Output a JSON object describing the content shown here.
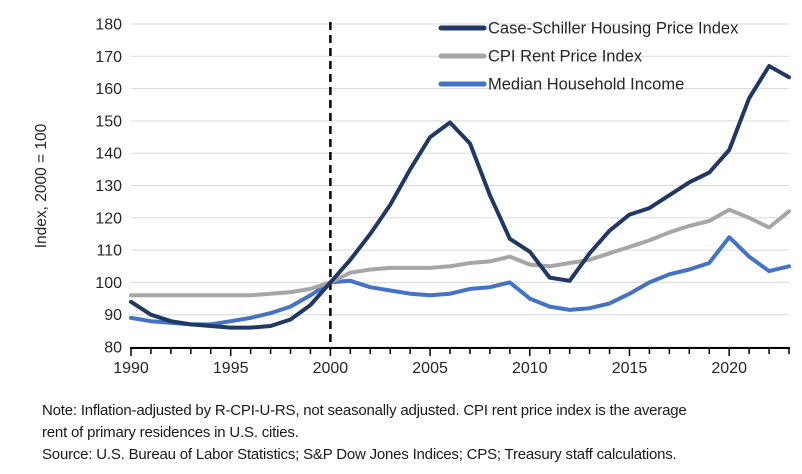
{
  "chart_data": {
    "type": "line",
    "title": "",
    "xlabel": "",
    "ylabel": "Index, 2000 = 100",
    "ylim": [
      80,
      180
    ],
    "ytick_step": 10,
    "xlim": [
      1990,
      2023
    ],
    "xticks": [
      1990,
      1995,
      2000,
      2005,
      2010,
      2015,
      2020
    ],
    "grid": "horizontal",
    "gridline_color": "#d9d9d9",
    "axis_color": "#000000",
    "reference_line": {
      "x": 2000,
      "style": "dashed",
      "color": "#000000"
    },
    "legend_position": "top-right-inside",
    "x": [
      1990,
      1991,
      1992,
      1993,
      1994,
      1995,
      1996,
      1997,
      1998,
      1999,
      2000,
      2001,
      2002,
      2003,
      2004,
      2005,
      2006,
      2007,
      2008,
      2009,
      2010,
      2011,
      2012,
      2013,
      2014,
      2015,
      2016,
      2017,
      2018,
      2019,
      2020,
      2021,
      2022,
      2023
    ],
    "series": [
      {
        "name": "Case-Schiller Housing Price Index",
        "color": "#1f3864",
        "values": [
          94,
          90,
          88,
          87,
          86.5,
          86,
          86,
          86.5,
          88.5,
          93,
          100,
          107,
          115,
          124,
          135,
          145,
          149.5,
          143,
          127,
          113.5,
          109.5,
          101.5,
          100.5,
          109,
          116,
          121,
          123,
          127,
          131,
          134,
          141,
          157,
          167,
          163.5
        ]
      },
      {
        "name": "CPI Rent Price Index",
        "color": "#a6a6a6",
        "values": [
          96,
          96,
          96,
          96,
          96,
          96,
          96,
          96.5,
          97,
          98,
          100,
          103,
          104,
          104.5,
          104.5,
          104.5,
          105,
          106,
          106.5,
          108,
          105.5,
          105,
          106,
          107,
          109,
          111,
          113,
          115.5,
          117.5,
          119,
          122.5,
          120,
          117,
          122
        ]
      },
      {
        "name": "Median Household Income",
        "color": "#4472c4",
        "values": [
          89,
          88,
          87.5,
          87,
          87,
          88,
          89,
          90.5,
          92.5,
          96,
          100,
          100.5,
          98.5,
          97.5,
          96.5,
          96,
          96.5,
          98,
          98.5,
          100,
          95,
          92.5,
          91.5,
          92,
          93.5,
          96.5,
          100,
          102.5,
          104,
          106,
          114,
          108,
          103.5,
          105
        ]
      }
    ]
  },
  "notes": {
    "note_line1": "Note: Inflation-adjusted by R-CPI-U-RS, not seasonally adjusted. CPI rent price index is the average",
    "note_line2": "rent of primary residences in U.S. cities.",
    "source": "Source: U.S. Bureau of Labor Statistics; S&P Dow Jones Indices; CPS; Treasury staff calculations."
  }
}
